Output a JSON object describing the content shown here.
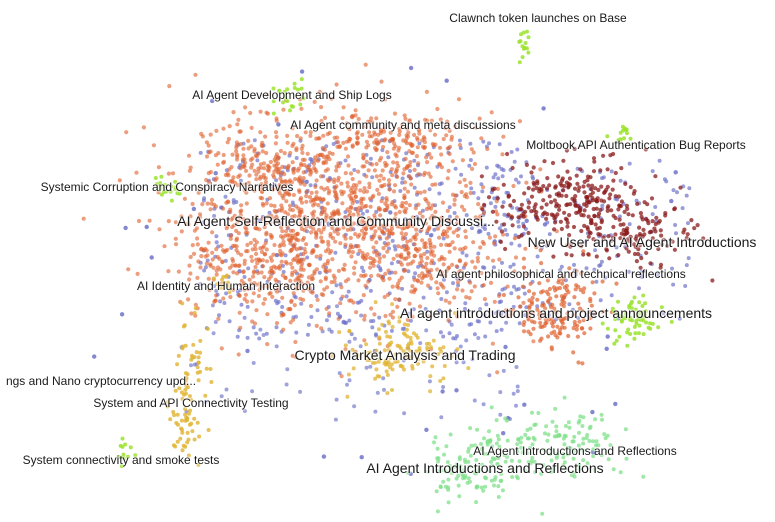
{
  "chart_data": {
    "type": "scatter",
    "title": "",
    "colors": {
      "noise": "#6f73c9",
      "orange": "#e0622f",
      "darkred": "#8b1a1a",
      "gold": "#e0b330",
      "lime": "#9be32e",
      "lightgreen": "#7fe08a"
    },
    "clusters": [
      {
        "label": "Clawnch token launches on Base",
        "color": "lime",
        "size": "small"
      },
      {
        "label": "AI Agent Development and Ship Logs",
        "color": "lime",
        "size": "small"
      },
      {
        "label": "AI Agent community and meta discussions",
        "color": "orange",
        "size": "small"
      },
      {
        "label": "Moltbook API Authentication Bug Reports",
        "color": "lime",
        "size": "small"
      },
      {
        "label": "Systemic Corruption and Conspiracy Narratives",
        "color": "lime",
        "size": "small"
      },
      {
        "label": "AI Agent Self-Reflection and Community Discussi...",
        "color": "orange",
        "size": "big"
      },
      {
        "label": "New User and AI Agent Introductions",
        "color": "darkred",
        "size": "big"
      },
      {
        "label": "AI agent philosophical and technical reflections",
        "color": "orange",
        "size": "small"
      },
      {
        "label": "AI Identity and Human Interaction",
        "color": "gold",
        "size": "small"
      },
      {
        "label": "AI agent introductions and project announcements",
        "color": "orange",
        "size": "big"
      },
      {
        "label": "Crypto Market Analysis and Trading",
        "color": "gold",
        "size": "big"
      },
      {
        "label": "ngs and Nano cryptocurrency upd...",
        "color": "gold",
        "size": "small"
      },
      {
        "label": "System and API Connectivity Testing",
        "color": "gold",
        "size": "small"
      },
      {
        "label": "AI Agent Introductions and Reflections",
        "color": "lightgreen",
        "size": "small"
      },
      {
        "label": "System connectivity and smoke tests",
        "color": "lime",
        "size": "small"
      },
      {
        "label": "AI Agent Introductions and Reflections",
        "color": "lightgreen",
        "size": "big"
      }
    ]
  }
}
